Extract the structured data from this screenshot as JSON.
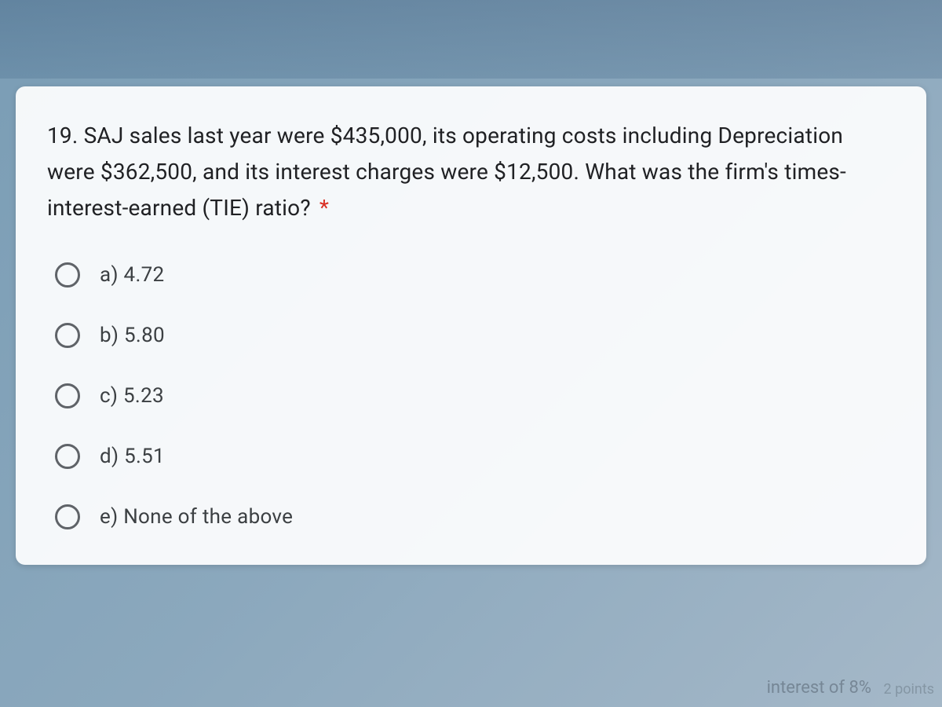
{
  "question": {
    "text": "19. SAJ sales last year were $435,000, its operating costs including Depreciation were $362,500, and its interest charges were $12,500. What was the firm's times-interest-earned (TIE) ratio?",
    "required": true
  },
  "options": [
    {
      "id": "a",
      "label": "a) 4.72"
    },
    {
      "id": "b",
      "label": "b) 5.80"
    },
    {
      "id": "c",
      "label": "c) 5.23"
    },
    {
      "id": "d",
      "label": "d) 5.51"
    },
    {
      "id": "e",
      "label": "e) None of the above"
    }
  ],
  "ghost": {
    "partial1": "interest of 8%",
    "partial2": "2 points"
  },
  "styling": {
    "card_background": "#ffffff",
    "card_opacity": 0.92,
    "question_color": "#202124",
    "option_color": "#3c4043",
    "radio_border_color": "#5f6368",
    "asterisk_color": "#d93025",
    "question_fontsize": 28,
    "option_fontsize": 26,
    "radio_size": 32,
    "card_border_radius": 12
  }
}
